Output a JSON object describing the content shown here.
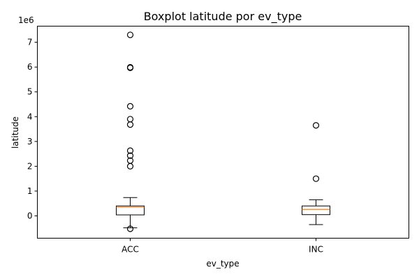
{
  "chart_data": {
    "type": "boxplot",
    "title": "Boxplot latitude por ev_type",
    "xlabel": "ev_type",
    "ylabel": "latitude",
    "y_offset_label": "1e6",
    "ylim": [
      -0.9,
      7.65
    ],
    "yticks": [
      0,
      1,
      2,
      3,
      4,
      5,
      6,
      7
    ],
    "ytick_labels": [
      "0",
      "1",
      "2",
      "3",
      "4",
      "5",
      "6",
      "7"
    ],
    "grid": false,
    "categories": [
      "ACC",
      "INC"
    ],
    "boxes": [
      {
        "category": "ACC",
        "whisker_low": -0.48,
        "q1": 0.04,
        "median": 0.35,
        "q3": 0.4,
        "whisker_high": 0.74,
        "fliers": [
          -0.52,
          2.0,
          2.23,
          2.43,
          2.63,
          3.68,
          3.9,
          4.42,
          5.97,
          5.99,
          7.3
        ]
      },
      {
        "category": "INC",
        "whisker_low": -0.35,
        "q1": 0.05,
        "median": 0.26,
        "q3": 0.4,
        "whisker_high": 0.65,
        "fliers": [
          1.5,
          3.65
        ]
      }
    ],
    "colors": {
      "box": "#000000",
      "median": "#ff7f0e",
      "flier": "#000000"
    }
  }
}
